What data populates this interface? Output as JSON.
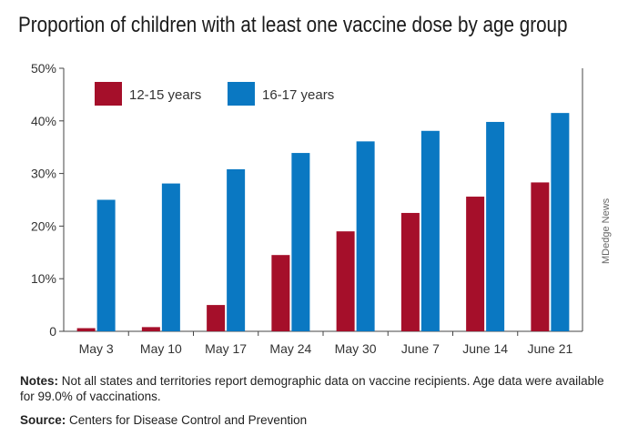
{
  "title": "Proportion of children with at least one vaccine dose by age group",
  "watermark": "MDedge News",
  "notes": {
    "label": "Notes:",
    "text": " Not all states and territories report demographic data on vaccine recipients. Age data were available for 99.0% of vaccinations."
  },
  "source": {
    "label": "Source:",
    "text": " Centers for Disease Control and Prevention"
  },
  "colors": {
    "series1": "#a50f2a",
    "series2": "#0a78c2",
    "axis": "#444444"
  },
  "chart_data": {
    "type": "bar",
    "title": "Proportion of children with at least one vaccine dose by age group",
    "categories": [
      "May 3",
      "May 10",
      "May 17",
      "May 24",
      "May 30",
      "June 7",
      "June 14",
      "June 21"
    ],
    "series": [
      {
        "name": "12-15 years",
        "values": [
          0.6,
          0.8,
          5.0,
          14.5,
          19.0,
          22.5,
          25.6,
          28.3
        ]
      },
      {
        "name": "16-17 years",
        "values": [
          25.0,
          28.1,
          30.8,
          33.9,
          36.1,
          38.1,
          39.8,
          41.5
        ]
      }
    ],
    "yticks": [
      "0",
      "10%",
      "20%",
      "30%",
      "40%",
      "50%"
    ],
    "ylim": [
      0,
      50
    ],
    "grid": false,
    "legend": "top-left"
  }
}
